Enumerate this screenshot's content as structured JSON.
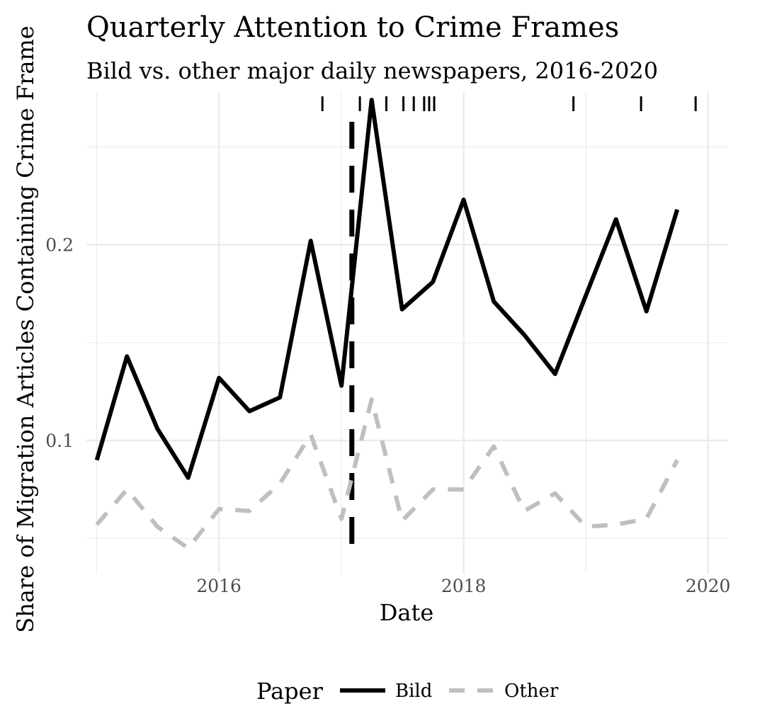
{
  "chart_data": {
    "type": "line",
    "title": "Quarterly Attention to Crime Frames",
    "subtitle": "Bild vs. other major daily newspapers, 2016-2020",
    "xlabel": "Date",
    "ylabel": "Share of Migration Articles Containing Crime Frame",
    "xlim": [
      "2014-12-01",
      "2020-03-01"
    ],
    "ylim": [
      0.032,
      0.278
    ],
    "x_ticks": [
      {
        "date": "2016-01-01",
        "label": "2016"
      },
      {
        "date": "2018-01-01",
        "label": "2018"
      },
      {
        "date": "2020-01-01",
        "label": "2020"
      }
    ],
    "y_ticks": [
      {
        "value": 0.1,
        "label": "0.1"
      },
      {
        "value": 0.2,
        "label": "0.2"
      }
    ],
    "grid": true,
    "legend": {
      "title": "Paper",
      "position": "bottom",
      "items": [
        {
          "label": "Bild",
          "color": "#000000",
          "dash": "solid"
        },
        {
          "label": "Other",
          "color": "#bfbfbf",
          "dash": "dashed"
        }
      ]
    },
    "x": [
      "2015-01-01",
      "2015-04-01",
      "2015-07-01",
      "2015-10-01",
      "2016-01-01",
      "2016-04-01",
      "2016-07-01",
      "2016-10-01",
      "2017-01-01",
      "2017-04-01",
      "2017-07-01",
      "2017-10-01",
      "2018-01-01",
      "2018-04-01",
      "2018-07-01",
      "2018-10-01",
      "2019-01-01",
      "2019-04-01",
      "2019-07-01",
      "2019-10-01"
    ],
    "series": [
      {
        "name": "Bild",
        "color": "#000000",
        "dash": "solid",
        "values": [
          0.09,
          0.143,
          0.106,
          0.081,
          0.132,
          0.115,
          0.122,
          0.202,
          0.128,
          0.274,
          0.167,
          0.181,
          0.223,
          0.171,
          0.154,
          0.134,
          0.174,
          0.213,
          0.166,
          0.218
        ]
      },
      {
        "name": "Other",
        "color": "#bfbfbf",
        "dash": "dashed",
        "values": [
          0.057,
          0.075,
          0.056,
          0.045,
          0.065,
          0.064,
          0.078,
          0.103,
          0.06,
          0.121,
          0.059,
          0.075,
          0.075,
          0.097,
          0.064,
          0.073,
          0.056,
          0.057,
          0.06,
          0.09
        ]
      }
    ],
    "reference_line": {
      "date": "2017-02-01",
      "style": "dashed",
      "color": "#000000"
    },
    "rug_events": [
      "2016-11-05",
      "2017-02-25",
      "2017-05-15",
      "2017-07-05",
      "2017-08-05",
      "2017-09-05",
      "2017-09-20",
      "2017-10-05",
      "2018-11-25",
      "2019-06-15",
      "2019-11-25"
    ]
  }
}
